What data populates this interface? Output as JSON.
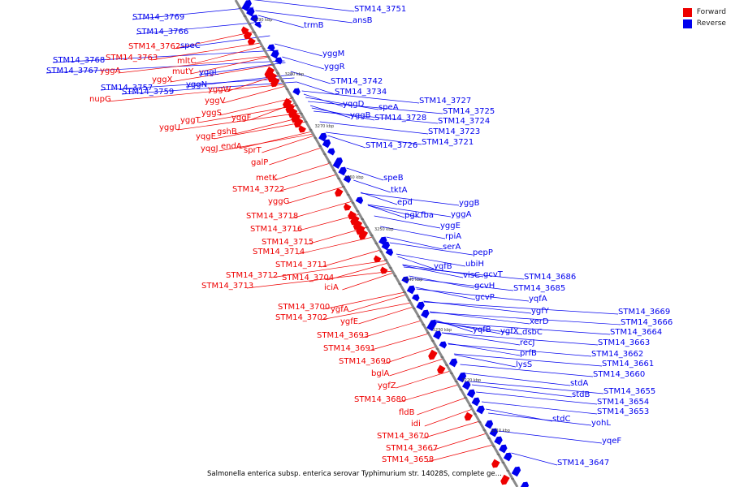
{
  "legend": {
    "forward": {
      "label": "Forward",
      "color": "#ee0000"
    },
    "reverse": {
      "label": "Reverse",
      "color": "#0000ee"
    }
  },
  "caption": "Salmonella enterica subsp. enterica serovar Typhimurium str. 14028S, complete ge...",
  "ticks": [
    "3290 kbp",
    "3280 kbp",
    "3270 kbp",
    "3260 kbp",
    "3250 kbp",
    "3240 kbp",
    "3230 kbp",
    "3220 kbp",
    "3210 kbp"
  ],
  "reverse_labels": [
    "STM14_3769",
    "STM14_3751",
    "trmB",
    "ansB",
    "STM14_3766",
    "speC",
    "STM14_3768",
    "STM14_3767",
    "yggM",
    "yggR",
    "yggL",
    "STM14_3759",
    "STM14_3757",
    "yggN",
    "STM14_3742",
    "STM14_3734",
    "yqgD",
    "STM14_3727",
    "speA",
    "STM14_3725",
    "yggB",
    "STM14_3728",
    "STM14_3724",
    "STM14_3723",
    "STM14_3726",
    "STM14_3721",
    "speB",
    "tktA",
    "epd",
    "yggB",
    "pgk",
    "fba",
    "yggA",
    "yggE",
    "rpiA",
    "serA",
    "pepP",
    "yqfB",
    "ubiH",
    "visC",
    "gcvT",
    "STM14_3686",
    "gcvH",
    "STM14_3685",
    "gcvP",
    "yqfA",
    "ygfY",
    "yqfB",
    "xerD",
    "ygfX",
    "dsbC",
    "recJ",
    "prfB",
    "lysS",
    "STM14_3669",
    "STM14_3666",
    "STM14_3664",
    "STM14_3663",
    "STM14_3662",
    "STM14_3661",
    "STM14_3660",
    "stdA",
    "stdB",
    "STM14_3655",
    "STM14_3654",
    "STM14_3653",
    "stdC",
    "yohL",
    "yqeF",
    "STM14_3647"
  ],
  "forward_labels": [
    "STM14_3762",
    "STM14_3763",
    "yggA",
    "mltC",
    "mutY",
    "yggX",
    "nupG",
    "yggW",
    "yggV",
    "yggS",
    "yggT",
    "yggU",
    "yggF",
    "gshB",
    "yqgE",
    "endA",
    "yqgJ",
    "sprT",
    "galP",
    "metK",
    "STM14_3722",
    "yggG",
    "STM14_3718",
    "STM14_3716",
    "STM14_3715",
    "STM14_3714",
    "STM14_3711",
    "STM14_3712",
    "STM14_3704",
    "STM14_3713",
    "iciA",
    "STM14_3700",
    "ygfA",
    "STM14_3702",
    "ygfE",
    "STM14_3693",
    "STM14_3691",
    "STM14_3690",
    "bglA",
    "ygfZ",
    "STM14_3680",
    "fldB",
    "idi",
    "STM14_3670",
    "STM14_3667",
    "STM14_3658"
  ]
}
